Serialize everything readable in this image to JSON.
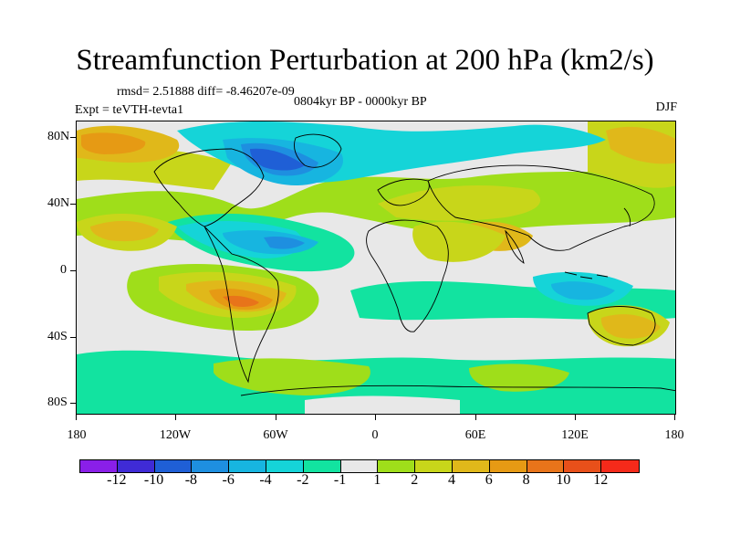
{
  "title": "Streamfunction Perturbation at 200 hPa (km2/s)",
  "stats": "rmsd= 2.51888 diff= -8.46207e-09",
  "experiment": "Expt = teVTH-tevta1",
  "period": "0804kyr BP - 0000kyr BP",
  "season": "DJF",
  "map": {
    "lat_labels": [
      "80N",
      "40N",
      "0",
      "40S",
      "80S"
    ],
    "lon_labels": [
      "180",
      "120W",
      "60W",
      "0",
      "60E",
      "120E",
      "180"
    ]
  },
  "colorbar": {
    "labels": [
      "-12",
      "-10",
      "-8",
      "-6",
      "-4",
      "-2",
      "-1",
      "1",
      "2",
      "4",
      "6",
      "8",
      "10",
      "12"
    ],
    "colors": [
      "#8a1fe8",
      "#3f2bd6",
      "#1f5fd6",
      "#1e8fe0",
      "#17b5e0",
      "#15d4d8",
      "#12e3a0",
      "#e8e8e8",
      "#9fde1a",
      "#c8d61a",
      "#e0b81a",
      "#e69a14",
      "#e8741a",
      "#e8501a",
      "#f52a1a"
    ]
  },
  "colors": {
    "background": "#e8e8e8",
    "coastline": "#000000"
  }
}
